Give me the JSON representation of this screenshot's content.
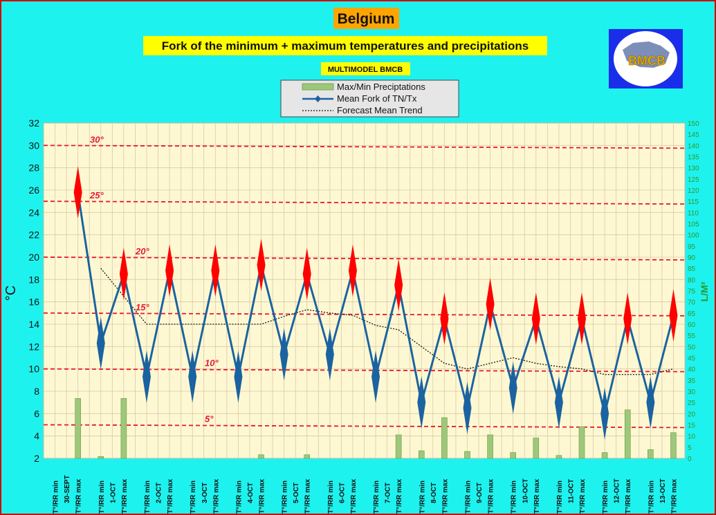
{
  "title": "Belgium",
  "subtitle": "Fork of the minimum + maximum temperatures and precipitations",
  "model_label": "MULTIMODEL BMCB",
  "logo_text": "BMCB",
  "legend": {
    "precip": "Max/Min Preciptations",
    "fork": "Mean Fork of TN/Tx",
    "trend": "Forecast Mean Trend"
  },
  "colors": {
    "background": "#1ef2ee",
    "plot": "#fdf8d2",
    "grid": "#d8c9a8",
    "fork_line": "#1b63a0",
    "max_diamond": "#ff0000",
    "min_diamond": "#1b63a0",
    "ref_line": "#e8182c",
    "precip_bar": "#9ec77a",
    "right_axis": "#2b9a2b",
    "title_bg": "#ffa500",
    "subtitle_bg": "#ffff00",
    "logo_bg": "#1a2eea"
  },
  "chart_data": {
    "type": "line",
    "y_left": {
      "label": "°C",
      "min": 2,
      "max": 32,
      "step": 2
    },
    "y_right": {
      "label": "L/M²",
      "min": 0,
      "max": 150,
      "step": 5
    },
    "reference_lines": [
      {
        "value": 30,
        "label": "30°"
      },
      {
        "value": 25,
        "label": "25°"
      },
      {
        "value": 20,
        "label": "20°"
      },
      {
        "value": 15,
        "label": "15°"
      },
      {
        "value": 10,
        "label": "10°"
      },
      {
        "value": 5,
        "label": "5°"
      }
    ],
    "categories": [
      "T°/RR min",
      "T°/RR max",
      "T°/RR min",
      "T°/RR max",
      "T°/RR min",
      "T°/RR max",
      "T°/RR min",
      "T°/RR max",
      "T°/RR min",
      "T°/RR max",
      "T°/RR min",
      "T°/RR max",
      "T°/RR min",
      "T°/RR max",
      "T°/RR min",
      "T°/RR max",
      "T°/RR min",
      "T°/RR max",
      "T°/RR min",
      "T°/RR max",
      "T°/RR min",
      "T°/RR max",
      "T°/RR min",
      "T°/RR max",
      "T°/RR min",
      "T°/RR max",
      "T°/RR min",
      "T°/RR max"
    ],
    "dates": [
      "30-SEPT",
      "1-OCT",
      "2-OCT",
      "3-OCT",
      "4-OCT",
      "5-OCT",
      "6-OCT",
      "7-OCT",
      "8-OCT",
      "9-OCT",
      "10-OCT",
      "11-OCT",
      "12-OCT",
      "13-OCT"
    ],
    "series": [
      {
        "name": "Mean Fork of TN/Tx",
        "values": [
          null,
          25.8,
          12.3,
          18.5,
          9.3,
          18.8,
          9.3,
          18.8,
          9.3,
          19.3,
          11.3,
          18.5,
          11.3,
          18.8,
          9.3,
          17.5,
          7.0,
          14.5,
          6.5,
          15.8,
          8.3,
          14.5,
          7.0,
          14.5,
          6.0,
          14.5,
          7.0,
          14.8
        ]
      },
      {
        "name": "Forecast Mean Trend",
        "values": [
          null,
          null,
          19.0,
          16.5,
          14.0,
          14.0,
          14.0,
          14.0,
          14.0,
          14.0,
          14.7,
          15.3,
          15.0,
          14.8,
          13.9,
          13.5,
          12.0,
          10.5,
          10.0,
          10.5,
          11.0,
          10.5,
          10.2,
          10.0,
          9.5,
          9.5,
          9.5,
          10.0
        ]
      },
      {
        "name": "Max/Min Preciptations",
        "axis": "right",
        "values": [
          null,
          26.8,
          0.8,
          26.8,
          null,
          null,
          null,
          null,
          null,
          1.6,
          null,
          1.6,
          null,
          null,
          null,
          10.5,
          3.4,
          18.2,
          3.1,
          10.5,
          2.6,
          9.1,
          1.3,
          14.2,
          2.6,
          21.7,
          3.9,
          11.5
        ]
      }
    ]
  }
}
